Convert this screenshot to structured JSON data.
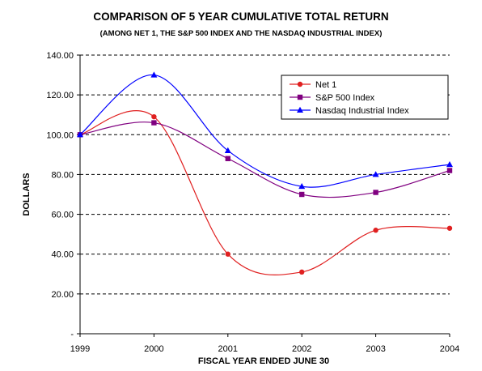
{
  "chart_data": {
    "type": "line",
    "title": "COMPARISON OF 5 YEAR CUMULATIVE TOTAL RETURN",
    "subtitle": "(AMONG NET 1, THE S&P 500 INDEX AND THE NASDAQ INDUSTRIAL INDEX)",
    "xlabel": "FISCAL YEAR ENDED JUNE 30",
    "ylabel": "DOLLARS",
    "x": [
      "1999",
      "2000",
      "2001",
      "2002",
      "2003",
      "2004"
    ],
    "ylim": [
      0,
      140
    ],
    "y_ticks": [
      "-",
      "20.00",
      "40.00",
      "60.00",
      "80.00",
      "100.00",
      "120.00",
      "140.00"
    ],
    "grid": "horizontal dashed",
    "legend_position": "top-right",
    "series": [
      {
        "name": "Net 1",
        "color": "#e02020",
        "marker": "circle",
        "values": [
          100,
          109,
          40,
          31,
          52,
          53
        ]
      },
      {
        "name": "S&P 500 Index",
        "color": "#800080",
        "marker": "square",
        "values": [
          100,
          106,
          88,
          70,
          71,
          82
        ]
      },
      {
        "name": "Nasdaq Industrial Index",
        "color": "#0000ff",
        "marker": "triangle",
        "values": [
          100,
          130,
          92,
          74,
          80,
          85
        ]
      }
    ]
  }
}
